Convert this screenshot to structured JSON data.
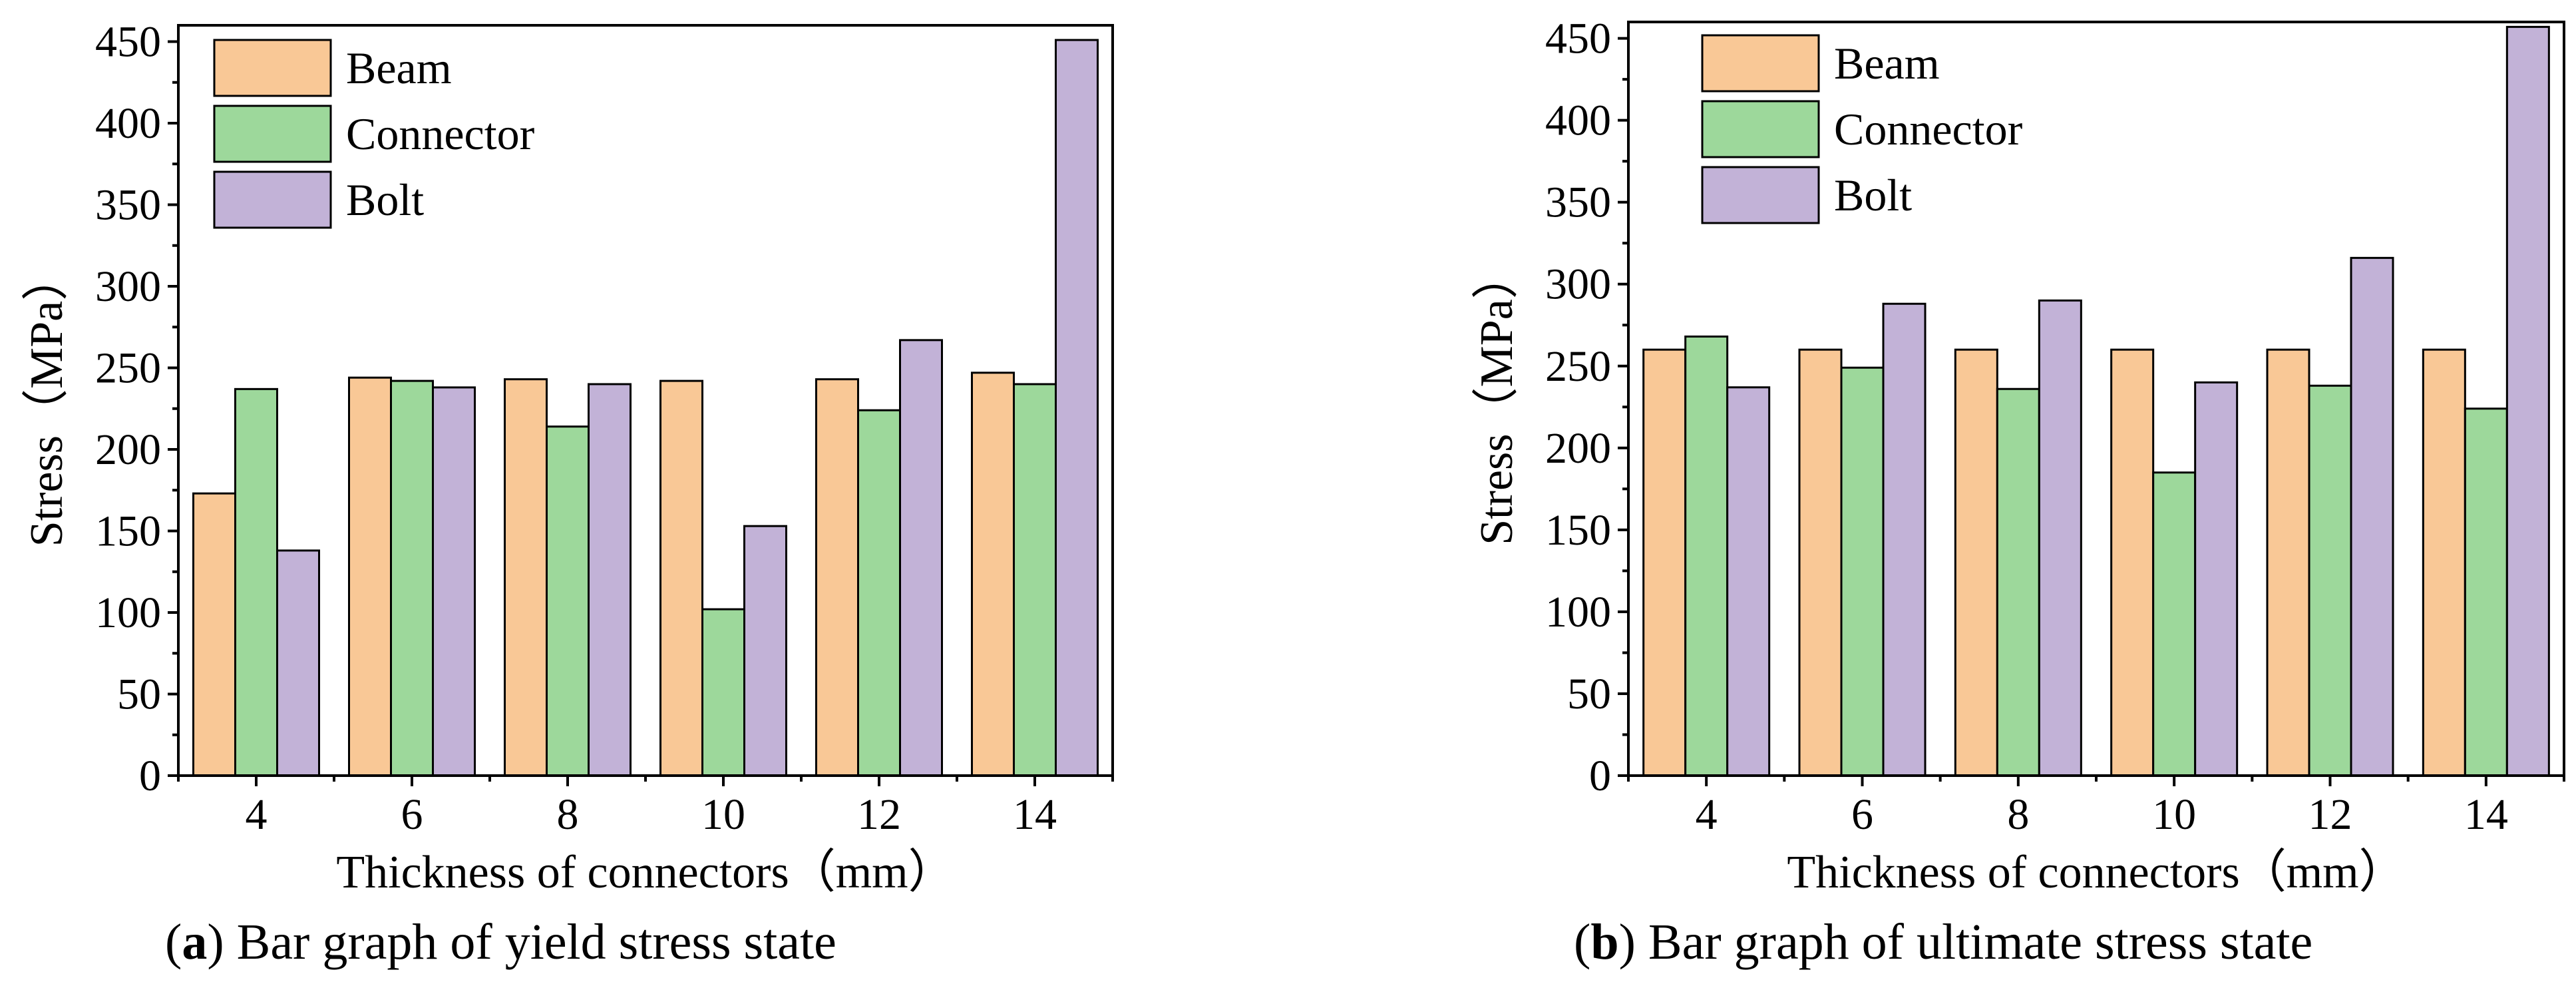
{
  "colors": {
    "Beam": "#f9c896",
    "Connector": "#9dd89b",
    "Bolt": "#c2b2d7"
  },
  "chart_data": [
    {
      "id": "a",
      "type": "bar",
      "categories": [
        "4",
        "6",
        "8",
        "10",
        "12",
        "14"
      ],
      "series": [
        {
          "name": "Beam",
          "values": [
            173,
            244,
            243,
            242,
            243,
            247
          ]
        },
        {
          "name": "Connector",
          "values": [
            237,
            242,
            214,
            102,
            224,
            240
          ]
        },
        {
          "name": "Bolt",
          "values": [
            138,
            238,
            240,
            153,
            267,
            451
          ]
        }
      ],
      "xlabel": "Thickness of connectors（mm",
      "xlabel_close": "）",
      "ylabel": "Stress（MPa）",
      "ylim": [
        0,
        460
      ],
      "yticks": [
        0,
        50,
        100,
        150,
        200,
        250,
        300,
        350,
        400,
        450
      ],
      "legend": "top-left",
      "caption_label": "a",
      "caption_open": "(",
      "caption_close": ")",
      "caption_text": " Bar graph of yield stress state"
    },
    {
      "id": "b",
      "type": "bar",
      "categories": [
        "4",
        "6",
        "8",
        "10",
        "12",
        "14"
      ],
      "series": [
        {
          "name": "Beam",
          "values": [
            260,
            260,
            260,
            260,
            260,
            260
          ]
        },
        {
          "name": "Connector",
          "values": [
            268,
            249,
            236,
            185,
            238,
            224
          ]
        },
        {
          "name": "Bolt",
          "values": [
            237,
            288,
            290,
            240,
            316,
            457
          ]
        }
      ],
      "xlabel": "Thickness of connectors（mm",
      "xlabel_close": "）",
      "ylabel": "Stress（MPa）",
      "ylim": [
        0,
        460
      ],
      "yticks": [
        0,
        50,
        100,
        150,
        200,
        250,
        300,
        350,
        400,
        450
      ],
      "legend": "top-left",
      "caption_label": "b",
      "caption_open": "(",
      "caption_close": ")",
      "caption_text": " Bar graph of ultimate stress state"
    }
  ]
}
